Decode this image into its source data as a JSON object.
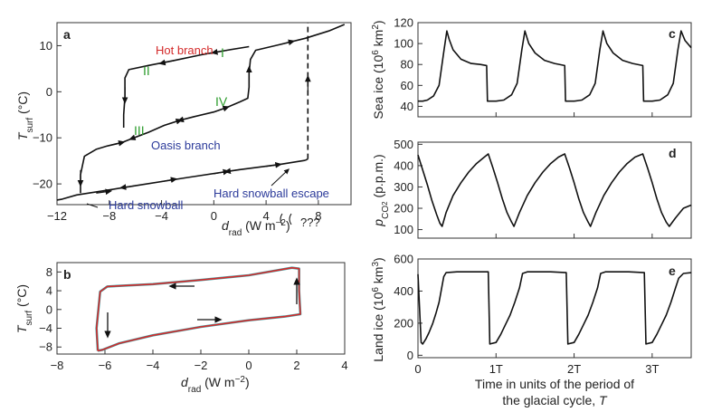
{
  "panels": {
    "a": {
      "label": "a",
      "xlabel_main": "d",
      "xlabel_sub": "rad",
      "xlabel_units": " (W m",
      "xlabel_exp": "−2",
      "xlabel_close": ")",
      "ylabel_main": "T",
      "ylabel_sub": "surf",
      "ylabel_units": " (°C)",
      "xticks": [
        "−12",
        "−8",
        "−4",
        "0",
        "4",
        "8"
      ],
      "yticks": [
        "10",
        "0",
        "−10",
        "−20"
      ],
      "annotations": {
        "hot": "Hot branch",
        "oasis": "Oasis branch",
        "hard": "Hard snowball",
        "escape": "Hard snowball escape",
        "qqq": "???",
        "r1": "I",
        "r2": "II",
        "r3": "III",
        "r4": "IV"
      }
    },
    "b": {
      "label": "b",
      "xlabel_main": "d",
      "xlabel_sub": "rad",
      "xlabel_units": " (W m",
      "xlabel_exp": "−2",
      "xlabel_close": ")",
      "ylabel_main": "T",
      "ylabel_sub": "surf",
      "ylabel_units": " (°C)",
      "xticks": [
        "−8",
        "−6",
        "−4",
        "−2",
        "0",
        "2",
        "4"
      ],
      "yticks": [
        "8",
        "4",
        "0",
        "−4",
        "−8"
      ]
    },
    "c": {
      "label": "c",
      "ylabel": "Sea ice (10",
      "ylabel_exp": "6",
      "ylabel_tail": " km",
      "ylabel_exp2": "2",
      "ylabel_close": ")",
      "yticks": [
        "120",
        "100",
        "80",
        "60",
        "40"
      ]
    },
    "d": {
      "label": "d",
      "ylabel_p": "p",
      "ylabel_sub": "CO",
      "ylabel_sub2": "2",
      "ylabel_units": " (p.p.m.)",
      "yticks": [
        "500",
        "400",
        "300",
        "200",
        "100"
      ]
    },
    "e": {
      "label": "e",
      "ylabel": "Land ice (10",
      "ylabel_exp": "6",
      "ylabel_tail": " km",
      "ylabel_exp2": "3",
      "ylabel_close": ")",
      "yticks": [
        "600",
        "400",
        "200",
        "0"
      ],
      "xticks": [
        "0",
        "1T",
        "2T",
        "3T"
      ],
      "xlabel_line1": "Time in units of the period of",
      "xlabel_line2_a": "the glacial cycle, ",
      "xlabel_line2_b": "T"
    }
  },
  "colors": {
    "hot": "#d42a2a",
    "oasis": "#2b3a9a",
    "roman": "#2e9d2e",
    "escape": "#2b3a9a",
    "loop": "#d42a2a",
    "line": "#111111"
  },
  "chart_data": [
    {
      "panel": "a",
      "type": "line",
      "xlim": [
        -12,
        10.5
      ],
      "ylim": [
        -24.5,
        15
      ],
      "series": [
        {
          "style": "solid",
          "points": [
            [
              -12,
              -23.5
            ],
            [
              -11.6,
              -23.3
            ],
            [
              -10.5,
              -22.4
            ],
            [
              -6,
              -20.4
            ],
            [
              -2,
              -18.6
            ],
            [
              2,
              -16.9
            ],
            [
              5,
              -15.8
            ],
            [
              7,
              -14.9
            ]
          ]
        },
        {
          "style": "dashed",
          "points": [
            [
              7,
              -14.9
            ],
            [
              7.2,
              -14.6
            ]
          ]
        },
        {
          "style": "dashed",
          "points": [
            [
              7.2,
              -14.6
            ],
            [
              7.2,
              15
            ]
          ]
        },
        {
          "style": "solid",
          "points": [
            [
              -10.2,
              -22
            ],
            [
              -10.2,
              -18
            ],
            [
              -9.9,
              -14
            ],
            [
              -9,
              -12.5
            ],
            [
              -8.2,
              -11.8
            ],
            [
              -7,
              -11
            ],
            [
              -6.3,
              -10.2
            ],
            [
              -5,
              -8.8
            ],
            [
              -3.8,
              -7.3
            ],
            [
              -2.6,
              -6.2
            ],
            [
              -1.5,
              -5.4
            ],
            [
              0,
              -4.4
            ],
            [
              1,
              -3.4
            ],
            [
              2,
              -2.2
            ],
            [
              2.6,
              -1.4
            ],
            [
              2.7,
              1
            ],
            [
              2.7,
              4
            ],
            [
              2.8,
              7
            ],
            [
              3.2,
              9
            ],
            [
              5,
              10.2
            ],
            [
              7,
              11.6
            ],
            [
              8.8,
              13.2
            ],
            [
              10,
              14.6
            ]
          ]
        },
        {
          "style": "solid",
          "points": [
            [
              2.7,
              9.8
            ],
            [
              1,
              9
            ],
            [
              -1,
              8
            ],
            [
              -3,
              6.8
            ],
            [
              -5,
              5.7
            ],
            [
              -6.5,
              4.8
            ],
            [
              -6.8,
              3
            ],
            [
              -6.8,
              -1
            ],
            [
              -6.9,
              -5
            ],
            [
              -6.9,
              -7.8
            ]
          ]
        }
      ]
    },
    {
      "panel": "b",
      "type": "line",
      "xlim": [
        -8,
        4
      ],
      "ylim": [
        -9.5,
        10
      ],
      "series": [
        {
          "points": [
            [
              -6.3,
              -8.8
            ],
            [
              -6.35,
              -4
            ],
            [
              -6.2,
              3.8
            ],
            [
              -5.9,
              4.9
            ],
            [
              -4,
              5.4
            ],
            [
              -2,
              6.3
            ],
            [
              0,
              7.3
            ],
            [
              1.8,
              8.9
            ],
            [
              2.1,
              8.7
            ],
            [
              2.1,
              4
            ],
            [
              2.15,
              -1
            ],
            [
              1.5,
              -1.5
            ],
            [
              0,
              -2.3
            ],
            [
              -2,
              -3.7
            ],
            [
              -4,
              -5.5
            ],
            [
              -5.4,
              -7.2
            ],
            [
              -6.1,
              -8.6
            ],
            [
              -6.3,
              -8.8
            ]
          ]
        }
      ]
    },
    {
      "panel": "c",
      "type": "line",
      "xlim": [
        0,
        3.5
      ],
      "ylim": [
        30,
        120
      ],
      "series": [
        {
          "points": [
            [
              0,
              45
            ],
            [
              0.06,
              45
            ],
            [
              0.12,
              46
            ],
            [
              0.2,
              50
            ],
            [
              0.27,
              60
            ],
            [
              0.33,
              92
            ],
            [
              0.37,
              112
            ],
            [
              0.4,
              104
            ],
            [
              0.45,
              94
            ],
            [
              0.55,
              85
            ],
            [
              0.68,
              81
            ],
            [
              0.8,
              80
            ],
            [
              0.88,
              79
            ],
            [
              0.89,
              45
            ],
            [
              1,
              45
            ],
            [
              1.1,
              46
            ],
            [
              1.2,
              51
            ],
            [
              1.27,
              62
            ],
            [
              1.33,
              94
            ],
            [
              1.37,
              112
            ],
            [
              1.42,
              100
            ],
            [
              1.5,
              91
            ],
            [
              1.62,
              84
            ],
            [
              1.75,
              81
            ],
            [
              1.88,
              79
            ],
            [
              1.89,
              45
            ],
            [
              2,
              45
            ],
            [
              2.1,
              46
            ],
            [
              2.2,
              51
            ],
            [
              2.27,
              62
            ],
            [
              2.33,
              94
            ],
            [
              2.37,
              112
            ],
            [
              2.42,
              100
            ],
            [
              2.5,
              91
            ],
            [
              2.62,
              84
            ],
            [
              2.75,
              81
            ],
            [
              2.88,
              79
            ],
            [
              2.89,
              45
            ],
            [
              3,
              45
            ],
            [
              3.1,
              46
            ],
            [
              3.2,
              51
            ],
            [
              3.27,
              62
            ],
            [
              3.33,
              94
            ],
            [
              3.37,
              112
            ],
            [
              3.42,
              103
            ],
            [
              3.5,
              96
            ]
          ]
        }
      ]
    },
    {
      "panel": "d",
      "type": "line",
      "xlim": [
        0,
        3.5
      ],
      "ylim": [
        60,
        510
      ],
      "series": [
        {
          "points": [
            [
              0,
              450
            ],
            [
              0.06,
              380
            ],
            [
              0.12,
              310
            ],
            [
              0.18,
              235
            ],
            [
              0.24,
              170
            ],
            [
              0.28,
              130
            ],
            [
              0.31,
              115
            ],
            [
              0.36,
              180
            ],
            [
              0.45,
              260
            ],
            [
              0.55,
              320
            ],
            [
              0.65,
              370
            ],
            [
              0.75,
              410
            ],
            [
              0.85,
              440
            ],
            [
              0.9,
              455
            ],
            [
              0.96,
              390
            ],
            [
              1.02,
              320
            ],
            [
              1.08,
              245
            ],
            [
              1.14,
              180
            ],
            [
              1.2,
              135
            ],
            [
              1.23,
              115
            ],
            [
              1.3,
              180
            ],
            [
              1.4,
              260
            ],
            [
              1.5,
              320
            ],
            [
              1.6,
              370
            ],
            [
              1.7,
              410
            ],
            [
              1.8,
              440
            ],
            [
              1.88,
              455
            ],
            [
              1.94,
              390
            ],
            [
              2,
              320
            ],
            [
              2.06,
              245
            ],
            [
              2.12,
              180
            ],
            [
              2.18,
              135
            ],
            [
              2.21,
              115
            ],
            [
              2.28,
              180
            ],
            [
              2.38,
              260
            ],
            [
              2.48,
              320
            ],
            [
              2.58,
              370
            ],
            [
              2.68,
              410
            ],
            [
              2.78,
              440
            ],
            [
              2.88,
              455
            ],
            [
              2.94,
              390
            ],
            [
              3,
              320
            ],
            [
              3.06,
              245
            ],
            [
              3.12,
              180
            ],
            [
              3.18,
              135
            ],
            [
              3.22,
              115
            ],
            [
              3.3,
              155
            ],
            [
              3.4,
              200
            ],
            [
              3.5,
              215
            ]
          ]
        }
      ]
    },
    {
      "panel": "e",
      "type": "line",
      "xlim": [
        0,
        3.5
      ],
      "ylim": [
        -15,
        600
      ],
      "series": [
        {
          "points": [
            [
              0,
              505
            ],
            [
              0.04,
              80
            ],
            [
              0.06,
              70
            ],
            [
              0.1,
              100
            ],
            [
              0.14,
              140
            ],
            [
              0.19,
              200
            ],
            [
              0.23,
              260
            ],
            [
              0.27,
              330
            ],
            [
              0.3,
              410
            ],
            [
              0.33,
              490
            ],
            [
              0.36,
              515
            ],
            [
              0.5,
              520
            ],
            [
              0.7,
              520
            ],
            [
              0.88,
              520
            ],
            [
              0.9,
              520
            ],
            [
              0.92,
              70
            ],
            [
              1,
              80
            ],
            [
              1.06,
              130
            ],
            [
              1.12,
              190
            ],
            [
              1.18,
              250
            ],
            [
              1.24,
              330
            ],
            [
              1.3,
              420
            ],
            [
              1.34,
              510
            ],
            [
              1.4,
              520
            ],
            [
              1.7,
              520
            ],
            [
              1.9,
              515
            ],
            [
              1.92,
              70
            ],
            [
              2,
              80
            ],
            [
              2.06,
              130
            ],
            [
              2.12,
              190
            ],
            [
              2.18,
              250
            ],
            [
              2.24,
              330
            ],
            [
              2.3,
              420
            ],
            [
              2.34,
              510
            ],
            [
              2.4,
              520
            ],
            [
              2.7,
              520
            ],
            [
              2.9,
              515
            ],
            [
              2.92,
              70
            ],
            [
              3,
              80
            ],
            [
              3.06,
              130
            ],
            [
              3.12,
              190
            ],
            [
              3.18,
              250
            ],
            [
              3.24,
              330
            ],
            [
              3.3,
              420
            ],
            [
              3.34,
              480
            ],
            [
              3.4,
              510
            ],
            [
              3.5,
              515
            ]
          ]
        }
      ]
    }
  ]
}
